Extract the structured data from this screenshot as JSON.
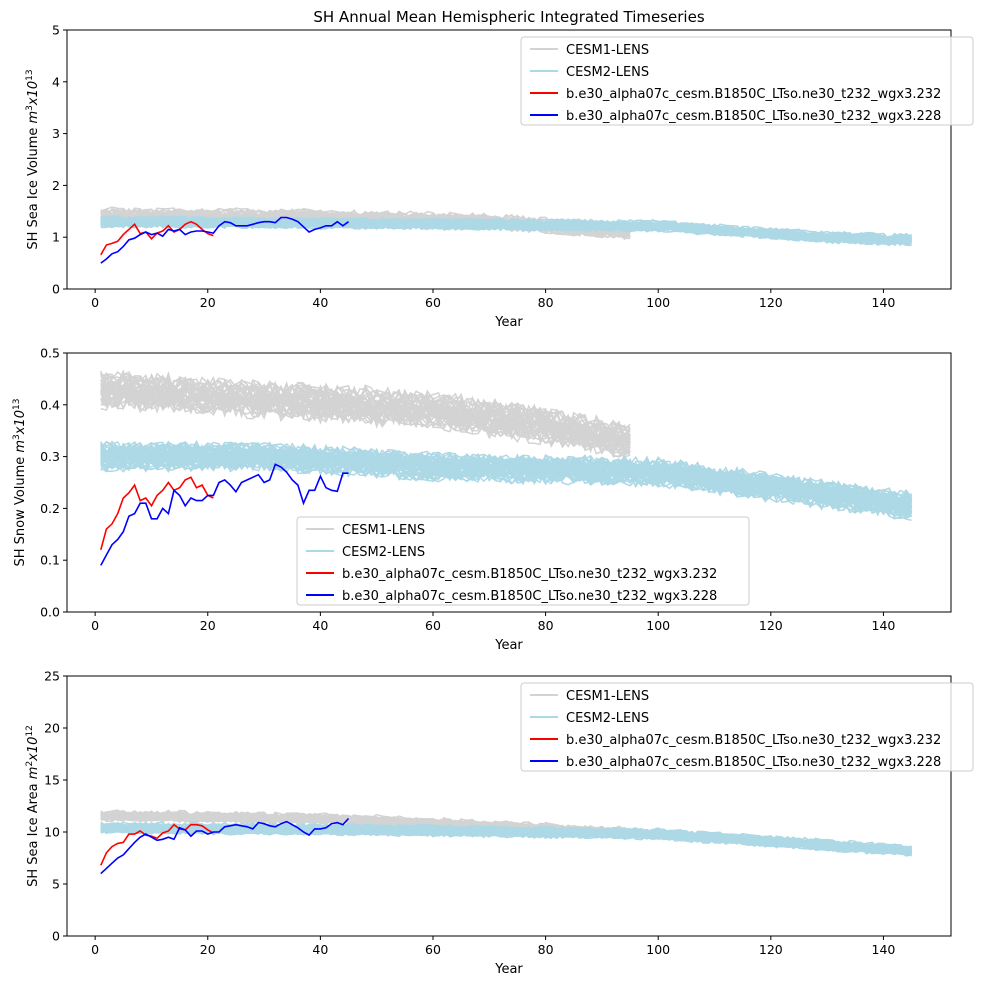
{
  "chart_data": [
    {
      "type": "line",
      "title": "SH Annual Mean Hemispheric Integrated Timeseries",
      "xlabel": "Year",
      "ylabel_parts": [
        {
          "t": "SH Sea Ice Volume "
        },
        {
          "t": "m",
          "i": true
        },
        {
          "t": "3",
          "sup": true
        },
        {
          "t": "x10",
          "i": true
        },
        {
          "t": "13",
          "sup": true
        }
      ],
      "xlim": [
        -5,
        152
      ],
      "ylim": [
        0,
        5
      ],
      "xticks": [
        "0",
        "20",
        "40",
        "60",
        "80",
        "100",
        "120",
        "140"
      ],
      "yticks": [
        "0",
        "1",
        "2",
        "3",
        "4",
        "5"
      ],
      "legend_position": "top-right",
      "ensembles": [
        {
          "name": "CESM1-LENS",
          "color": "#d3d3d3",
          "members": 40,
          "years": [
            1,
            95
          ],
          "mean_keypoints": [
            [
              1,
              1.42
            ],
            [
              40,
              1.38
            ],
            [
              70,
              1.3
            ],
            [
              95,
              1.12
            ]
          ],
          "spread": 0.13
        },
        {
          "name": "CESM2-LENS",
          "color": "#add8e6",
          "members": 50,
          "years": [
            1,
            145
          ],
          "mean_keypoints": [
            [
              1,
              1.3
            ],
            [
              50,
              1.27
            ],
            [
              100,
              1.22
            ],
            [
              130,
              1.0
            ],
            [
              145,
              0.95
            ]
          ],
          "spread": 0.09
        }
      ],
      "series": [
        {
          "name": "b.e30_alpha07c_cesm.B1850C_LTso.ne30_t232_wgx3.232",
          "color": "#ff0000",
          "x_start": 1,
          "values": [
            0.66,
            0.85,
            0.88,
            0.92,
            1.05,
            1.15,
            1.25,
            1.07,
            1.1,
            0.97,
            1.08,
            1.12,
            1.22,
            1.1,
            1.15,
            1.25,
            1.3,
            1.25,
            1.15,
            1.07,
            1.03
          ]
        },
        {
          "name": "b.e30_alpha07c_cesm.B1850C_LTso.ne30_t232_wgx3.228",
          "color": "#0000ff",
          "x_start": 1,
          "values": [
            0.5,
            0.58,
            0.68,
            0.72,
            0.82,
            0.95,
            0.98,
            1.05,
            1.1,
            1.05,
            1.08,
            1.02,
            1.15,
            1.12,
            1.15,
            1.05,
            1.1,
            1.12,
            1.12,
            1.1,
            1.08,
            1.22,
            1.3,
            1.28,
            1.22,
            1.22,
            1.22,
            1.25,
            1.28,
            1.3,
            1.3,
            1.28,
            1.38,
            1.38,
            1.35,
            1.3,
            1.2,
            1.1,
            1.15,
            1.18,
            1.22,
            1.22,
            1.3,
            1.22,
            1.3
          ]
        }
      ]
    },
    {
      "type": "line",
      "title": "",
      "xlabel": "Year",
      "ylabel_parts": [
        {
          "t": "SH Snow Volume "
        },
        {
          "t": "m",
          "i": true
        },
        {
          "t": "3",
          "sup": true
        },
        {
          "t": "x10",
          "i": true
        },
        {
          "t": "13",
          "sup": true
        }
      ],
      "xlim": [
        -5,
        152
      ],
      "ylim": [
        0,
        0.5
      ],
      "xticks": [
        "0",
        "20",
        "40",
        "60",
        "80",
        "100",
        "120",
        "140"
      ],
      "yticks": [
        "0.0",
        "0.1",
        "0.2",
        "0.3",
        "0.4",
        "0.5"
      ],
      "legend_position": "lower-center",
      "ensembles": [
        {
          "name": "CESM1-LENS",
          "color": "#d3d3d3",
          "members": 40,
          "years": [
            1,
            95
          ],
          "mean_keypoints": [
            [
              1,
              0.43
            ],
            [
              30,
              0.41
            ],
            [
              60,
              0.39
            ],
            [
              80,
              0.36
            ],
            [
              95,
              0.33
            ]
          ],
          "spread": 0.03
        },
        {
          "name": "CESM2-LENS",
          "color": "#add8e6",
          "members": 50,
          "years": [
            1,
            145
          ],
          "mean_keypoints": [
            [
              1,
              0.3
            ],
            [
              30,
              0.3
            ],
            [
              60,
              0.28
            ],
            [
              100,
              0.27
            ],
            [
              145,
              0.205
            ]
          ],
          "spread": 0.022
        }
      ],
      "series": [
        {
          "name": "b.e30_alpha07c_cesm.B1850C_LTso.ne30_t232_wgx3.232",
          "color": "#ff0000",
          "x_start": 1,
          "values": [
            0.12,
            0.16,
            0.17,
            0.19,
            0.22,
            0.23,
            0.245,
            0.215,
            0.22,
            0.205,
            0.225,
            0.235,
            0.25,
            0.235,
            0.24,
            0.255,
            0.26,
            0.24,
            0.245,
            0.225,
            0.22
          ]
        },
        {
          "name": "b.e30_alpha07c_cesm.B1850C_LTso.ne30_t232_wgx3.228",
          "color": "#0000ff",
          "x_start": 1,
          "values": [
            0.09,
            0.11,
            0.13,
            0.14,
            0.155,
            0.185,
            0.19,
            0.21,
            0.21,
            0.18,
            0.18,
            0.2,
            0.19,
            0.235,
            0.225,
            0.205,
            0.22,
            0.215,
            0.215,
            0.225,
            0.225,
            0.25,
            0.255,
            0.245,
            0.232,
            0.25,
            0.255,
            0.26,
            0.265,
            0.25,
            0.255,
            0.285,
            0.28,
            0.27,
            0.255,
            0.245,
            0.21,
            0.235,
            0.235,
            0.262,
            0.24,
            0.235,
            0.233,
            0.268,
            0.268
          ]
        }
      ]
    },
    {
      "type": "line",
      "title": "",
      "xlabel": "Year",
      "ylabel_parts": [
        {
          "t": "SH Sea Ice Area "
        },
        {
          "t": "m",
          "i": true
        },
        {
          "t": "2",
          "sup": true
        },
        {
          "t": "x10",
          "i": true
        },
        {
          "t": "12",
          "sup": true
        }
      ],
      "xlim": [
        -5,
        152
      ],
      "ylim": [
        0,
        25
      ],
      "xticks": [
        "0",
        "20",
        "40",
        "60",
        "80",
        "100",
        "120",
        "140"
      ],
      "yticks": [
        "0",
        "5",
        "10",
        "15",
        "20",
        "25"
      ],
      "legend_position": "top-right",
      "ensembles": [
        {
          "name": "CESM1-LENS",
          "color": "#d3d3d3",
          "members": 40,
          "years": [
            1,
            95
          ],
          "mean_keypoints": [
            [
              1,
              11.6
            ],
            [
              40,
              11.3
            ],
            [
              70,
              10.6
            ],
            [
              95,
              9.9
            ]
          ],
          "spread": 0.45
        },
        {
          "name": "CESM2-LENS",
          "color": "#add8e6",
          "members": 50,
          "years": [
            1,
            145
          ],
          "mean_keypoints": [
            [
              1,
              10.4
            ],
            [
              50,
              10.2
            ],
            [
              100,
              9.8
            ],
            [
              145,
              8.2
            ]
          ],
          "spread": 0.45
        }
      ],
      "series": [
        {
          "name": "b.e30_alpha07c_cesm.B1850C_LTso.ne30_t232_wgx3.232",
          "color": "#ff0000",
          "x_start": 1,
          "values": [
            6.8,
            8.0,
            8.6,
            8.9,
            9.0,
            9.8,
            9.8,
            10.1,
            9.7,
            9.6,
            9.4,
            9.9,
            10.1,
            10.7,
            10.3,
            10.2,
            10.7,
            10.7,
            10.6,
            10.2,
            9.9
          ]
        },
        {
          "name": "b.e30_alpha07c_cesm.B1850C_LTso.ne30_t232_wgx3.228",
          "color": "#0000ff",
          "x_start": 1,
          "values": [
            6.0,
            6.5,
            7.0,
            7.5,
            7.8,
            8.4,
            9.0,
            9.5,
            9.8,
            9.5,
            9.2,
            9.3,
            9.5,
            9.3,
            10.4,
            10.2,
            9.6,
            10.1,
            10.1,
            9.8,
            10.0,
            10.0,
            10.5,
            10.6,
            10.7,
            10.6,
            10.5,
            10.3,
            10.9,
            10.8,
            10.6,
            10.5,
            10.8,
            11.0,
            10.7,
            10.4,
            10.0,
            9.7,
            10.3,
            10.3,
            10.4,
            10.8,
            10.9,
            10.7,
            11.3
          ]
        }
      ]
    }
  ]
}
